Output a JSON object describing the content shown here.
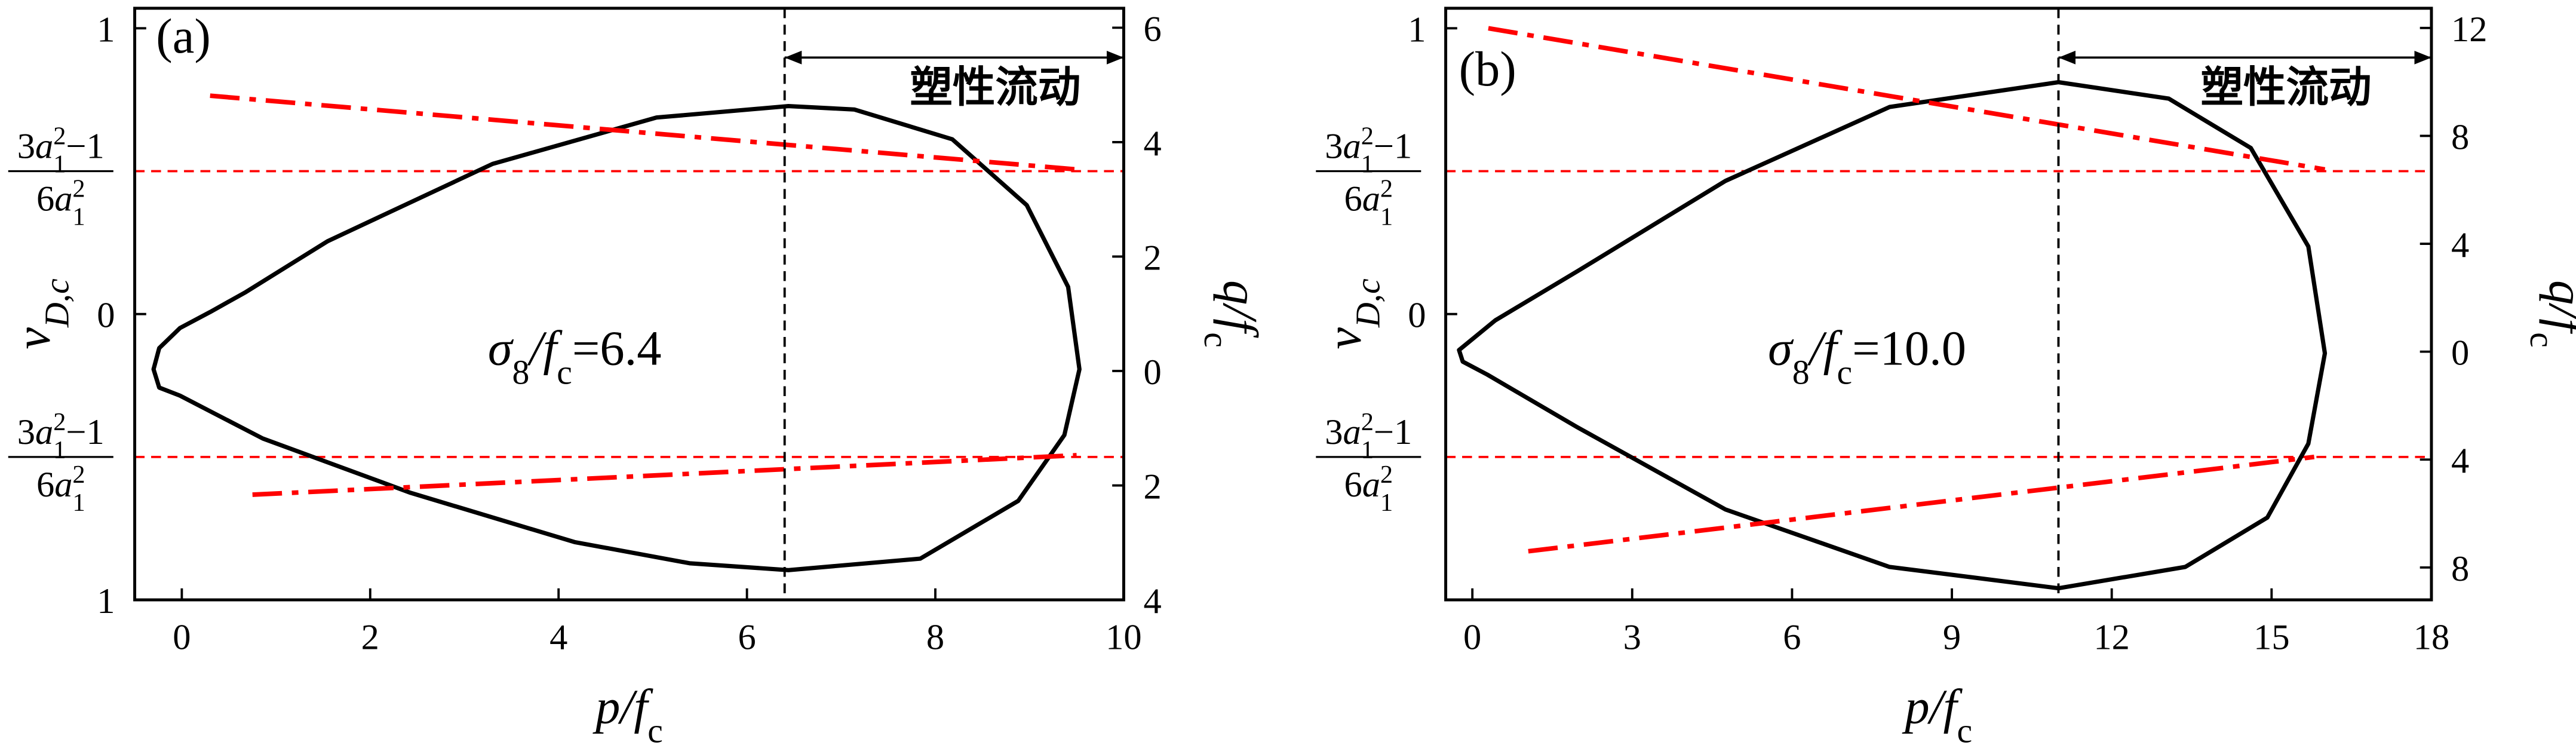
{
  "chart_data": [
    {
      "type": "line",
      "label": "(a)",
      "arrow_label": "塑性流动",
      "annotation": [
        {
          "text": "σ",
          "italic": true
        },
        {
          "text": "8",
          "sub": true
        },
        {
          "text": "/f",
          "italic": true
        },
        {
          "text": "c",
          "sub": true
        },
        {
          "text": "=6.4"
        }
      ],
      "xlabel": [
        {
          "text": "p/f",
          "italic": true
        },
        {
          "text": "c",
          "sub": true
        }
      ],
      "ylabel": [
        {
          "text": "v",
          "italic": true
        },
        {
          "text": "D,c",
          "sub": true,
          "italic": true
        }
      ],
      "y2label": [
        {
          "text": "q/f",
          "italic": true
        },
        {
          "text": "c",
          "sub": true
        }
      ],
      "xlim": [
        -0.5,
        10
      ],
      "xticks": [
        0,
        2,
        4,
        6,
        8,
        10
      ],
      "ylim": [
        -1,
        1.07
      ],
      "yticks": [
        {
          "value": 1,
          "label": "1"
        },
        0,
        {
          "value": -1,
          "label": "1"
        }
      ],
      "y2lim": [
        -4,
        6.34
      ],
      "y2ticks": [
        6,
        4,
        2,
        0,
        {
          "value": -2,
          "label": "2"
        },
        {
          "value": -4,
          "label": "4"
        }
      ],
      "flow_start": 6.4,
      "reference_lines": [
        {
          "value": 0.5,
          "color": "#ff0000",
          "numerator": [
            {
              "text": "3"
            },
            {
              "text": "a",
              "italic": true
            },
            {
              "text": "1",
              "sub": true
            },
            {
              "text": "2",
              "sup": true
            },
            {
              "text": "−1"
            }
          ],
          "denominator": [
            {
              "text": "6"
            },
            {
              "text": "a",
              "italic": true
            },
            {
              "text": "1",
              "sub": true
            },
            {
              "text": "2",
              "sup": true
            }
          ]
        },
        {
          "value": -0.5,
          "color": "#ff0000",
          "numerator": [
            {
              "text": "3"
            },
            {
              "text": "a",
              "italic": true
            },
            {
              "text": "1",
              "sub": true
            },
            {
              "text": "2",
              "sup": true
            },
            {
              "text": "−1"
            }
          ],
          "denominator": [
            {
              "text": "6"
            },
            {
              "text": "a",
              "italic": true
            },
            {
              "text": "1",
              "sub": true
            },
            {
              "text": "2",
              "sup": true
            }
          ]
        }
      ],
      "series": [
        {
          "color": "#000000",
          "axis": "y2",
          "closed": true,
          "x": [
            0.3,
            -0.02,
            -0.24,
            -0.3,
            -0.24,
            -0.02,
            0.86,
            2.43,
            4.17,
            5.39,
            6.44,
            7.84,
            8.88,
            9.37,
            9.53,
            9.41,
            8.97,
            8.18,
            7.14,
            6.44,
            5.04,
            3.3,
            1.55,
            0.68
          ],
          "values": [
            1.03,
            0.75,
            0.4,
            0.03,
            -0.29,
            -0.43,
            -1.18,
            -2.13,
            -2.99,
            -3.36,
            -3.48,
            -3.28,
            -2.27,
            -1.12,
            0.03,
            1.47,
            2.9,
            4.05,
            4.57,
            4.63,
            4.43,
            3.62,
            2.27,
            1.38
          ]
        },
        {
          "color": "#ff0000",
          "style": "dashdot",
          "x": [
            0.3,
            9.5
          ],
          "values": [
            0.764,
            0.506
          ]
        },
        {
          "color": "#ff0000",
          "style": "dashdot",
          "x": [
            0.75,
            9.5
          ],
          "values": [
            -0.632,
            -0.494
          ]
        }
      ]
    },
    {
      "type": "line",
      "label": "(b)",
      "arrow_label": "塑性流动",
      "annotation": [
        {
          "text": "σ",
          "italic": true
        },
        {
          "text": "8",
          "sub": true
        },
        {
          "text": "/f",
          "italic": true
        },
        {
          "text": "c",
          "sub": true
        },
        {
          "text": "=10.0"
        }
      ],
      "xlabel": [
        {
          "text": "p/f",
          "italic": true
        },
        {
          "text": "c",
          "sub": true
        }
      ],
      "ylabel": [
        {
          "text": "v",
          "italic": true
        },
        {
          "text": "D,c",
          "sub": true,
          "italic": true
        }
      ],
      "y2label": [
        {
          "text": "q/f",
          "italic": true
        },
        {
          "text": "c",
          "sub": true
        }
      ],
      "xlim": [
        -0.5,
        18
      ],
      "xticks": [
        0,
        3,
        6,
        9,
        12,
        15,
        18
      ],
      "ylim": [
        -1,
        1.07
      ],
      "yticks": [
        {
          "value": 1,
          "label": "1"
        },
        0
      ],
      "y2lim": [
        -9.2,
        12.73
      ],
      "y2ticks": [
        12,
        8,
        4,
        0,
        {
          "value": -4,
          "label": "4"
        },
        {
          "value": -8,
          "label": "8"
        }
      ],
      "flow_start": 11.0,
      "reference_lines": [
        {
          "value": 0.5,
          "color": "#ff0000",
          "numerator": [
            {
              "text": "3"
            },
            {
              "text": "a",
              "italic": true
            },
            {
              "text": "1",
              "sub": true
            },
            {
              "text": "2",
              "sup": true
            },
            {
              "text": "−1"
            }
          ],
          "denominator": [
            {
              "text": "6"
            },
            {
              "text": "a",
              "italic": true
            },
            {
              "text": "1",
              "sub": true
            },
            {
              "text": "2",
              "sup": true
            }
          ]
        },
        {
          "value": -0.5,
          "color": "#ff0000",
          "numerator": [
            {
              "text": "3"
            },
            {
              "text": "a",
              "italic": true
            },
            {
              "text": "1",
              "sub": true
            },
            {
              "text": "2",
              "sup": true
            },
            {
              "text": "−1"
            }
          ],
          "denominator": [
            {
              "text": "6"
            },
            {
              "text": "a",
              "italic": true
            },
            {
              "text": "1",
              "sub": true
            },
            {
              "text": "2",
              "sup": true
            }
          ]
        }
      ],
      "series": [
        {
          "color": "#000000",
          "axis": "y2",
          "closed": true,
          "x": [
            -0.25,
            0.43,
            1.97,
            4.75,
            7.83,
            11.0,
            13.07,
            14.61,
            15.69,
            16.0,
            15.69,
            14.92,
            13.38,
            11.0,
            7.83,
            4.75,
            1.97,
            0.28,
            -0.18
          ],
          "values": [
            0.06,
            1.16,
            2.98,
            6.33,
            9.07,
            9.99,
            9.38,
            7.55,
            3.9,
            -0.06,
            -3.41,
            -6.15,
            -7.98,
            -8.77,
            -7.98,
            -5.85,
            -2.8,
            -0.85,
            -0.37
          ]
        },
        {
          "color": "#ff0000",
          "style": "dashdot",
          "x": [
            0.3,
            16.0
          ],
          "values": [
            1.0,
            0.506
          ]
        },
        {
          "color": "#ff0000",
          "style": "dashdot",
          "x": [
            1.05,
            15.8
          ],
          "values": [
            -0.83,
            -0.5
          ]
        }
      ]
    }
  ]
}
